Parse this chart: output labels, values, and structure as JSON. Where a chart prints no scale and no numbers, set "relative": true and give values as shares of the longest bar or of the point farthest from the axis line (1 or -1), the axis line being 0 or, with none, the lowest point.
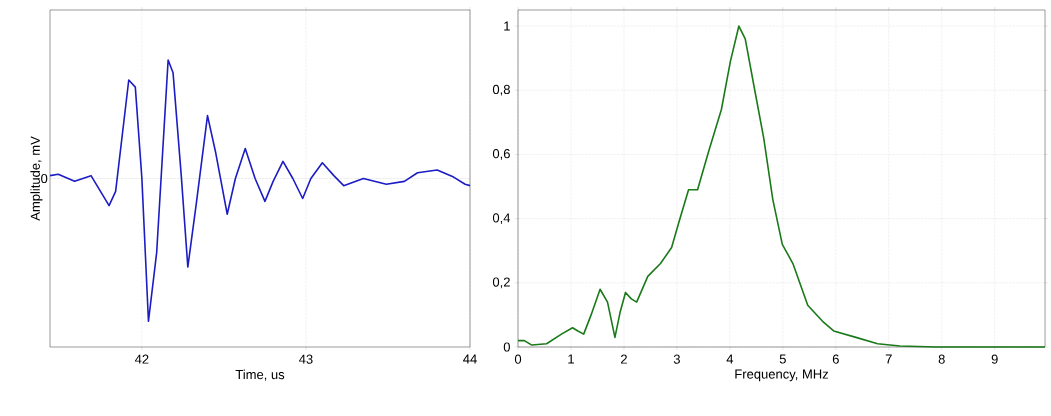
{
  "chart_data": [
    {
      "type": "line",
      "xlabel": "Time, us",
      "ylabel": "Amplitude, mV",
      "relative": true,
      "grid": "x",
      "color": "#1c1cc4",
      "ref_lines": [
        {
          "axis": "y",
          "value": 0,
          "label": "0",
          "line_style": "dotted"
        }
      ],
      "xlim": [
        41.44,
        44
      ],
      "xticks": [
        42,
        43,
        44
      ],
      "x": [
        41.44,
        41.49,
        41.59,
        41.69,
        41.8,
        41.84,
        41.92,
        41.96,
        42.0,
        42.04,
        42.09,
        42.16,
        42.19,
        42.24,
        42.28,
        42.33,
        42.4,
        42.45,
        42.52,
        42.57,
        42.63,
        42.69,
        42.75,
        42.8,
        42.86,
        42.92,
        42.98,
        43.03,
        43.1,
        43.17,
        43.23,
        43.35,
        43.49,
        43.6,
        43.68,
        43.8,
        43.9,
        43.97,
        44.0
      ],
      "values": [
        0.02,
        0.03,
        -0.02,
        0.02,
        -0.19,
        -0.09,
        0.69,
        0.64,
        0,
        -1,
        -0.52,
        0.83,
        0.74,
        0.02,
        -0.62,
        -0.19,
        0.44,
        0.18,
        -0.25,
        0,
        0.21,
        0,
        -0.16,
        -0.02,
        0.12,
        0,
        -0.14,
        0,
        0.11,
        0.02,
        -0.05,
        0,
        -0.04,
        -0.02,
        0.04,
        0.06,
        0.01,
        -0.04,
        -0.05
      ]
    },
    {
      "type": "line",
      "xlabel": "Frequency, MHz",
      "grid": true,
      "color": "#1a7a1a",
      "xlim": [
        0,
        9.95
      ],
      "ylim": [
        0,
        1.05
      ],
      "xticks": [
        0,
        1,
        2,
        3,
        4,
        5,
        6,
        7,
        8,
        9
      ],
      "yticks": [
        0,
        {
          "value": 0.2,
          "label": "0,2"
        },
        {
          "value": 0.4,
          "label": "0,4"
        },
        {
          "value": 0.6,
          "label": "0,6"
        },
        {
          "value": 0.8,
          "label": "0,8"
        },
        1
      ],
      "x": [
        0,
        0.12,
        0.26,
        0.54,
        0.82,
        1.03,
        1.13,
        1.24,
        1.38,
        1.55,
        1.69,
        1.83,
        1.93,
        2.03,
        2.14,
        2.24,
        2.45,
        2.69,
        2.9,
        3.04,
        3.22,
        3.39,
        3.6,
        3.84,
        4.01,
        4.17,
        4.29,
        4.47,
        4.64,
        4.81,
        4.99,
        5.19,
        5.47,
        5.75,
        5.96,
        6.38,
        6.79,
        7.21,
        7.9,
        8.94,
        9.95
      ],
      "values": [
        0.02,
        0.02,
        0.006,
        0.01,
        0.04,
        0.06,
        0.05,
        0.04,
        0.1,
        0.18,
        0.14,
        0.03,
        0.11,
        0.17,
        0.15,
        0.14,
        0.22,
        0.26,
        0.31,
        0.39,
        0.49,
        0.49,
        0.61,
        0.74,
        0.89,
        1.0,
        0.96,
        0.8,
        0.65,
        0.46,
        0.32,
        0.26,
        0.13,
        0.08,
        0.05,
        0.03,
        0.01,
        0.003,
        0,
        0,
        0
      ]
    }
  ]
}
